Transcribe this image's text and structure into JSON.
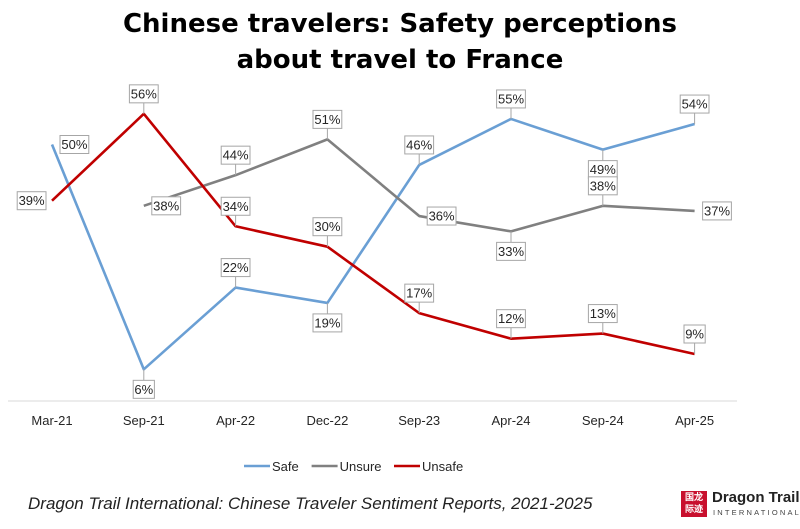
{
  "title_lines": [
    "Chinese travelers: Safety perceptions",
    "about travel to France"
  ],
  "source": "Dragon Trail International: Chinese Traveler Sentiment Reports, 2021-2025",
  "logo": {
    "name": "Dragon Trail",
    "sub": "INTERNATIONAL",
    "mark": "国龙际迹"
  },
  "chart_data": {
    "type": "line",
    "title": "Chinese travelers: Safety perceptions about travel to France",
    "categories": [
      "Mar-21",
      "Sep-21",
      "Apr-22",
      "Dec-22",
      "Sep-23",
      "Apr-24",
      "Sep-24",
      "Apr-25"
    ],
    "series": [
      {
        "name": "Safe",
        "color": "#6a9fd4",
        "values": [
          50,
          6,
          22,
          19,
          46,
          55,
          49,
          54
        ]
      },
      {
        "name": "Unsure",
        "color": "#808080",
        "values": [
          null,
          38,
          44,
          51,
          36,
          33,
          38,
          37
        ]
      },
      {
        "name": "Unsafe",
        "color": "#c00000",
        "values": [
          39,
          56,
          34,
          30,
          17,
          12,
          13,
          9
        ]
      }
    ],
    "value_suffix": "%",
    "ylim": [
      0,
      60
    ],
    "grid": false,
    "legend": "bottom",
    "xlabel": "",
    "ylabel": ""
  }
}
